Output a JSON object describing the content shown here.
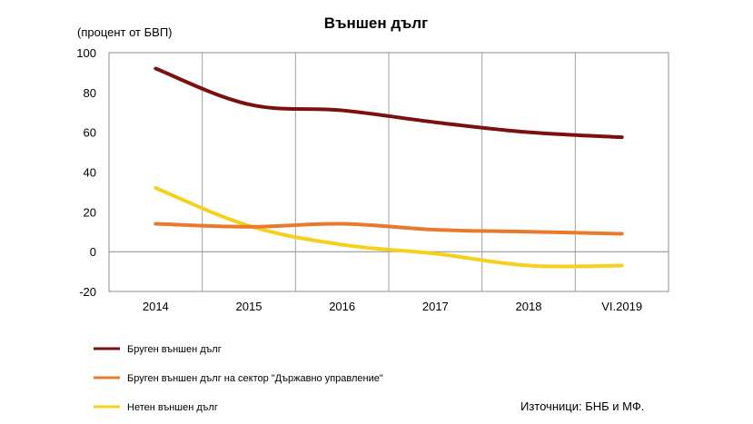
{
  "chart_data": {
    "type": "line",
    "title": "Външен дълг",
    "ylabel": "(процент от БВП)",
    "xlabel": "",
    "categories": [
      "2014",
      "2015",
      "2016",
      "2017",
      "2018",
      "VI.2019"
    ],
    "ylim": [
      -20,
      100
    ],
    "yticks": [
      100,
      80,
      60,
      40,
      20,
      0,
      -20
    ],
    "grid": "vertical",
    "legend_position": "bottom-left",
    "series": [
      {
        "name": "Бруген външен дълг",
        "color": "#7b1010",
        "values": [
          92,
          74,
          71,
          65,
          60,
          57.5
        ]
      },
      {
        "name": "Бруген външен дълг на сектор \"Държавно управление\"",
        "color": "#ea7a2b",
        "values": [
          14,
          12.5,
          14,
          11,
          10,
          9
        ]
      },
      {
        "name": "Нетен външен дълг",
        "color": "#f5d01c",
        "values": [
          32,
          13,
          3.5,
          -1,
          -7,
          -7
        ]
      }
    ],
    "source": "Източници: БНБ и МФ."
  }
}
